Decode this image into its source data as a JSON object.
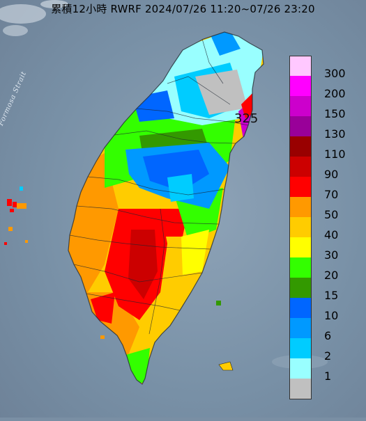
{
  "title": "累積12小時 RWRF 2024/07/26 11:20~07/26 23:20",
  "map": {
    "strait_label": "Formosa Strait",
    "max_value_label": "325"
  },
  "legend": {
    "items": [
      {
        "label": "300",
        "color": "#ffc8ff"
      },
      {
        "label": "200",
        "color": "#ff00ff"
      },
      {
        "label": "150",
        "color": "#cc00cc"
      },
      {
        "label": "130",
        "color": "#990099"
      },
      {
        "label": "110",
        "color": "#990000"
      },
      {
        "label": "90",
        "color": "#cc0000"
      },
      {
        "label": "70",
        "color": "#ff0000"
      },
      {
        "label": "50",
        "color": "#ff9900"
      },
      {
        "label": "40",
        "color": "#ffcc00"
      },
      {
        "label": "30",
        "color": "#ffff00"
      },
      {
        "label": "20",
        "color": "#33ff00"
      },
      {
        "label": "15",
        "color": "#339900"
      },
      {
        "label": "10",
        "color": "#0066ff"
      },
      {
        "label": "6",
        "color": "#0099ff"
      },
      {
        "label": "2",
        "color": "#00ccff"
      },
      {
        "label": "1",
        "color": "#99ffff"
      },
      {
        "label": "",
        "color": "#c0c0c0"
      }
    ]
  }
}
